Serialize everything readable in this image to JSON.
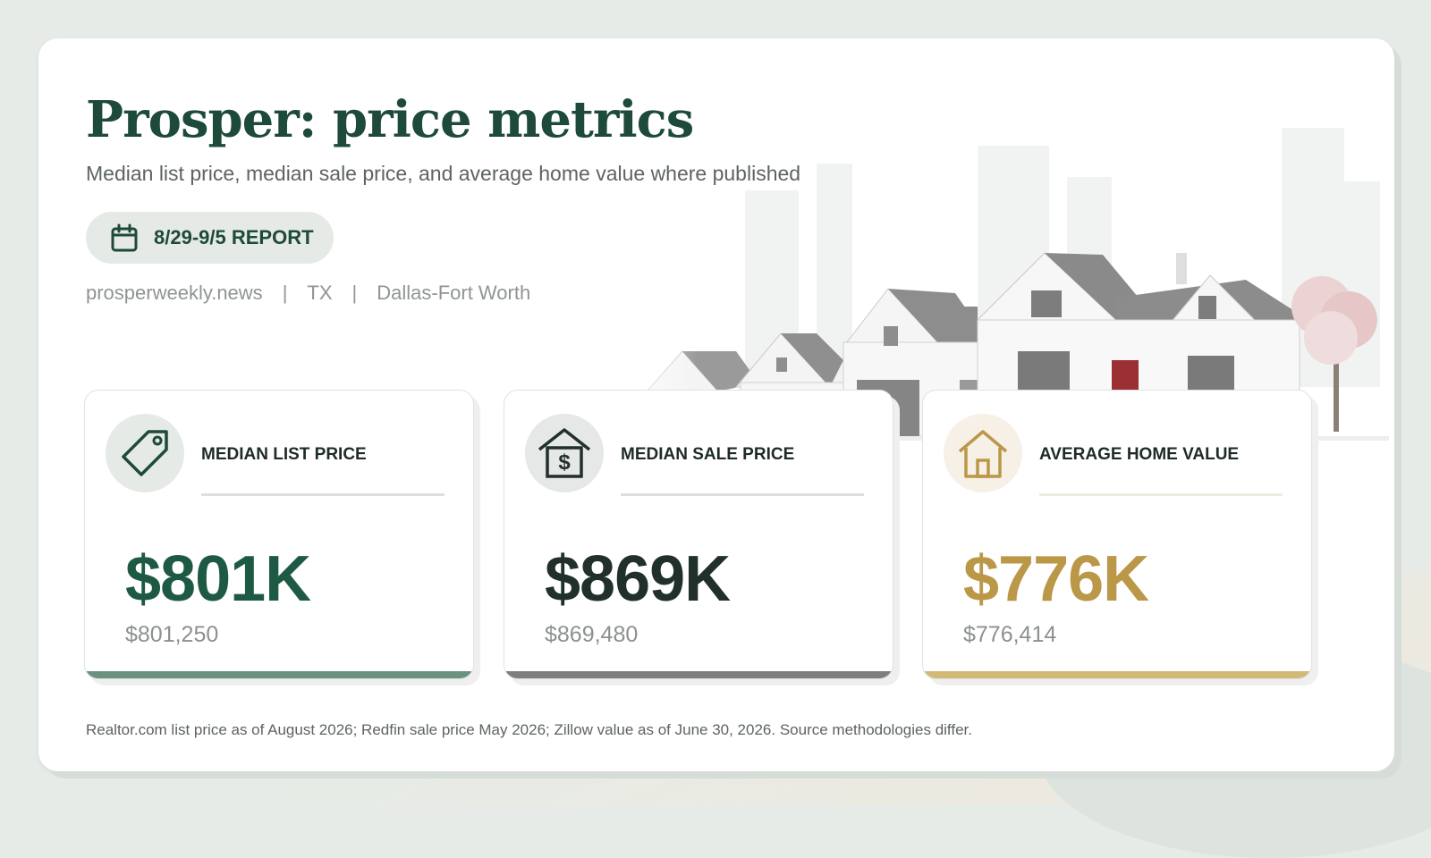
{
  "header": {
    "title": "Prosper: price metrics",
    "subtitle": "Median list price, median sale price, and average home value where published",
    "report_label": "8/29-9/5 REPORT"
  },
  "meta": {
    "source": "prosperweekly.news",
    "state": "TX",
    "region": "Dallas-Fort Worth",
    "separator": "|"
  },
  "metrics": [
    {
      "label": "MEDIAN LIST PRICE",
      "value": "$801K",
      "exact": "$801,250",
      "icon": "price-tag-icon",
      "accent": "#1e5a43",
      "bar_color": "#6b927f",
      "icon_bg": "#e5eae7",
      "rule_color": "#dcdfdd"
    },
    {
      "label": "MEDIAN SALE PRICE",
      "value": "$869K",
      "exact": "$869,480",
      "icon": "house-dollar-icon",
      "accent": "#22302b",
      "bar_color": "#7c7f7d",
      "icon_bg": "#e5e8e6",
      "rule_color": "#dcdfdd"
    },
    {
      "label": "AVERAGE HOME VALUE",
      "value": "$776K",
      "exact": "$776,414",
      "icon": "house-icon",
      "accent": "#bb9748",
      "bar_color": "#d3b978",
      "icon_bg": "#f6f0e7",
      "rule_color": "#efebe2"
    }
  ],
  "footnote": "Realtor.com list price as of August 2026; Redfin sale price May 2026; Zillow value as of June 30, 2026. Source methodologies differ."
}
